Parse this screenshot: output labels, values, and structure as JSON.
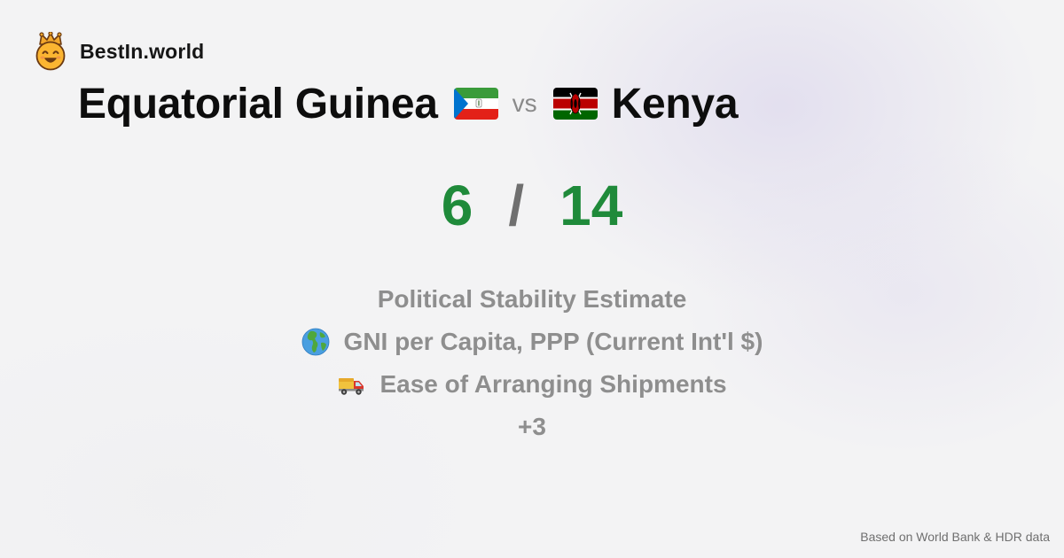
{
  "brand": {
    "name": "BestIn.world",
    "logo_icon": "smiling-face-with-crown-icon"
  },
  "comparison": {
    "country_a": "Equatorial Guinea",
    "country_a_flag": "equatorial-guinea-flag-icon",
    "vs_label": "vs",
    "country_b": "Kenya",
    "country_b_flag": "kenya-flag-icon"
  },
  "score": {
    "left": "6",
    "separator": "/",
    "right": "14",
    "color": "#1f8a3a"
  },
  "metrics": [
    {
      "label": "Political Stability Estimate",
      "icon": ""
    },
    {
      "label": "GNI per Capita, PPP (Current Int'l $)",
      "icon": "globe-icon"
    },
    {
      "label": "Ease of Arranging Shipments",
      "icon": "delivery-truck-icon"
    }
  ],
  "more_label": "+3",
  "footer": {
    "source": "Based on World Bank & HDR data"
  }
}
